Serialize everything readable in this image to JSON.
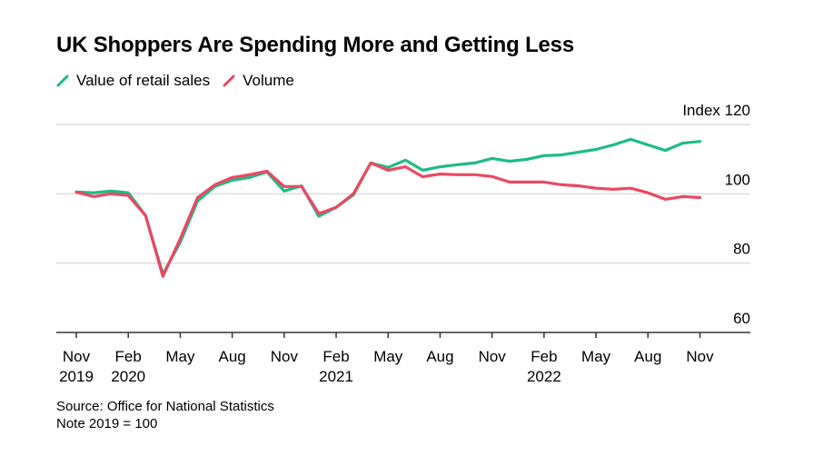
{
  "title": "UK Shoppers Are Spending More and Getting Less",
  "footer": {
    "source": "Source: Office for National Statistics",
    "note": "Note 2019 = 100"
  },
  "chart_data": {
    "type": "line",
    "title": "UK Shoppers Are Spending More and Getting Less",
    "xlabel": "",
    "ylabel": "Index",
    "ylim": [
      60,
      120
    ],
    "yticks": [
      60,
      80,
      100,
      120
    ],
    "ytick_labels": [
      "60",
      "80",
      "100",
      "Index 120"
    ],
    "grid": true,
    "legend": "top-left",
    "x": [
      "2019-11",
      "2019-12",
      "2020-01",
      "2020-02",
      "2020-03",
      "2020-04",
      "2020-05",
      "2020-06",
      "2020-07",
      "2020-08",
      "2020-09",
      "2020-10",
      "2020-11",
      "2020-12",
      "2021-01",
      "2021-02",
      "2021-03",
      "2021-04",
      "2021-05",
      "2021-06",
      "2021-07",
      "2021-08",
      "2021-09",
      "2021-10",
      "2021-11",
      "2021-12",
      "2022-01",
      "2022-02",
      "2022-03",
      "2022-04",
      "2022-05",
      "2022-06",
      "2022-07",
      "2022-08",
      "2022-09",
      "2022-10",
      "2022-11"
    ],
    "xticks": [
      {
        "x": "2019-11",
        "label": "Nov",
        "year": "2019"
      },
      {
        "x": "2020-02",
        "label": "Feb",
        "year": "2020"
      },
      {
        "x": "2020-05",
        "label": "May",
        "year": ""
      },
      {
        "x": "2020-08",
        "label": "Aug",
        "year": ""
      },
      {
        "x": "2020-11",
        "label": "Nov",
        "year": ""
      },
      {
        "x": "2021-02",
        "label": "Feb",
        "year": "2021"
      },
      {
        "x": "2021-05",
        "label": "May",
        "year": ""
      },
      {
        "x": "2021-08",
        "label": "Aug",
        "year": ""
      },
      {
        "x": "2021-11",
        "label": "Nov",
        "year": ""
      },
      {
        "x": "2022-02",
        "label": "Feb",
        "year": "2022"
      },
      {
        "x": "2022-05",
        "label": "May",
        "year": ""
      },
      {
        "x": "2022-08",
        "label": "Aug",
        "year": ""
      },
      {
        "x": "2022-11",
        "label": "Nov",
        "year": ""
      }
    ],
    "series": [
      {
        "name": "Value of retail sales",
        "color": "#1dbb85",
        "values": [
          100.5,
          100.3,
          100.8,
          100.3,
          93.7,
          76.8,
          86.0,
          97.9,
          102.1,
          103.9,
          104.7,
          106.3,
          100.8,
          102.3,
          93.5,
          96.1,
          99.7,
          108.9,
          107.6,
          109.7,
          106.8,
          107.8,
          108.4,
          108.9,
          110.2,
          109.4,
          109.9,
          111.0,
          111.2,
          112.0,
          112.8,
          114.1,
          115.7,
          114.1,
          112.5,
          114.6,
          115.1
        ]
      },
      {
        "name": "Volume",
        "color": "#ec4862",
        "values": [
          100.5,
          99.2,
          100.0,
          99.5,
          93.7,
          76.2,
          87.0,
          98.9,
          102.6,
          104.7,
          105.5,
          106.5,
          102.1,
          102.1,
          94.3,
          96.1,
          100.0,
          108.9,
          106.8,
          107.8,
          104.9,
          105.7,
          105.5,
          105.5,
          105.0,
          103.4,
          103.4,
          103.4,
          102.6,
          102.3,
          101.6,
          101.3,
          101.6,
          100.3,
          98.4,
          99.2,
          98.9
        ]
      }
    ]
  }
}
